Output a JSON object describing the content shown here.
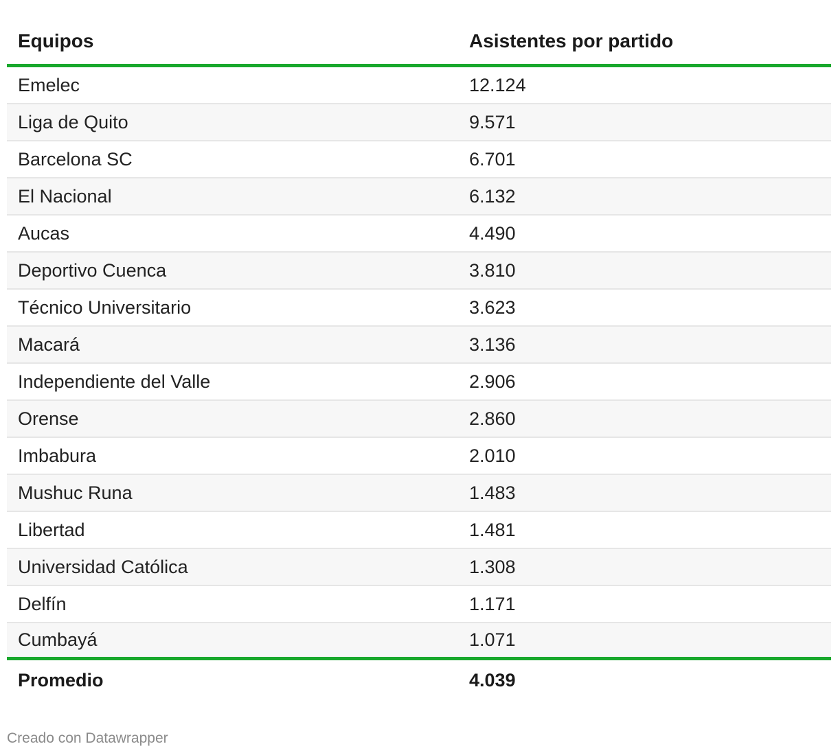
{
  "chart_data": {
    "type": "table",
    "columns": [
      "Equipos",
      "Asistentes por partido"
    ],
    "rows": [
      {
        "team": "Emelec",
        "value": "12.124"
      },
      {
        "team": "Liga de Quito",
        "value": "9.571"
      },
      {
        "team": "Barcelona SC",
        "value": "6.701"
      },
      {
        "team": "El Nacional",
        "value": "6.132"
      },
      {
        "team": "Aucas",
        "value": "4.490"
      },
      {
        "team": "Deportivo Cuenca",
        "value": "3.810"
      },
      {
        "team": "Técnico Universitario",
        "value": "3.623"
      },
      {
        "team": "Macará",
        "value": "3.136"
      },
      {
        "team": "Independiente del Valle",
        "value": "2.906"
      },
      {
        "team": "Orense",
        "value": "2.860"
      },
      {
        "team": "Imbabura",
        "value": "2.010"
      },
      {
        "team": "Mushuc Runa",
        "value": "1.483"
      },
      {
        "team": "Libertad",
        "value": "1.481"
      },
      {
        "team": "Universidad Católica",
        "value": "1.308"
      },
      {
        "team": "Delfín",
        "value": "1.171"
      },
      {
        "team": "Cumbayá",
        "value": "1.071"
      }
    ],
    "total": {
      "label": "Promedio",
      "value": "4.039"
    }
  },
  "footer": {
    "credit": "Creado con Datawrapper"
  },
  "colors": {
    "accent_rule": "#18a82c",
    "stripe": "#f7f7f7",
    "divider": "#e6e6e6"
  }
}
